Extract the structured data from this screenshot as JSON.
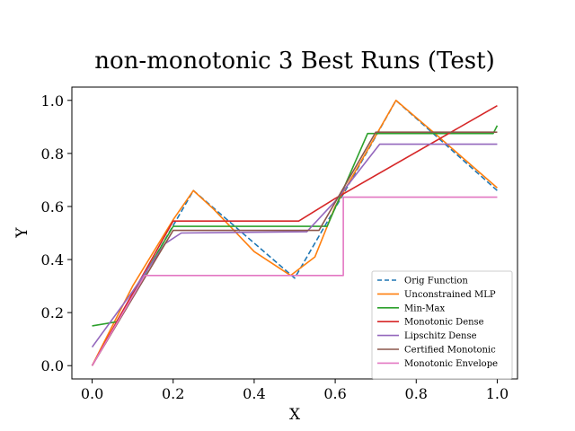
{
  "chart_data": {
    "type": "line",
    "title": "non-monotonic 3 Best Runs (Test)",
    "xlabel": "X",
    "ylabel": "Y",
    "xlim": [
      -0.05,
      1.05
    ],
    "ylim": [
      -0.05,
      1.05
    ],
    "xticks": [
      "0.0",
      "0.2",
      "0.4",
      "0.6",
      "0.8",
      "1.0"
    ],
    "yticks": [
      "0.0",
      "0.2",
      "0.4",
      "0.6",
      "0.8",
      "1.0"
    ],
    "xtick_values": [
      0.0,
      0.2,
      0.4,
      0.6,
      0.8,
      1.0
    ],
    "ytick_values": [
      0.0,
      0.2,
      0.4,
      0.6,
      0.8,
      1.0
    ],
    "grid": false,
    "legend_position": "lower-right",
    "series": [
      {
        "name": "Orig Function",
        "color": "#1f77b4",
        "dashed": true,
        "x": [
          0.0,
          0.125,
          0.25,
          0.5,
          0.625,
          0.75,
          1.0
        ],
        "y": [
          0.0,
          0.33,
          0.66,
          0.33,
          0.66,
          1.0,
          0.66
        ]
      },
      {
        "name": "Unconstrained MLP",
        "color": "#ff7f0e",
        "dashed": false,
        "x": [
          0.0,
          0.1,
          0.2,
          0.25,
          0.3,
          0.4,
          0.49,
          0.55,
          0.6,
          0.75,
          0.85,
          1.0
        ],
        "y": [
          0.0,
          0.3,
          0.55,
          0.66,
          0.59,
          0.43,
          0.34,
          0.41,
          0.6,
          1.0,
          0.87,
          0.67
        ]
      },
      {
        "name": "Min-Max",
        "color": "#2ca02c",
        "dashed": false,
        "x": [
          0.0,
          0.06,
          0.2,
          0.58,
          0.68,
          0.99,
          1.0
        ],
        "y": [
          0.15,
          0.165,
          0.525,
          0.525,
          0.875,
          0.875,
          0.905
        ]
      },
      {
        "name": "Monotonic Dense",
        "color": "#d62728",
        "dashed": false,
        "x": [
          0.0,
          0.2,
          0.51,
          0.6,
          1.0
        ],
        "y": [
          0.0,
          0.545,
          0.545,
          0.63,
          0.98
        ]
      },
      {
        "name": "Lipschitz Dense",
        "color": "#9467bd",
        "dashed": false,
        "x": [
          0.0,
          0.1,
          0.18,
          0.22,
          0.53,
          0.6,
          0.71,
          1.0
        ],
        "y": [
          0.07,
          0.28,
          0.46,
          0.5,
          0.505,
          0.62,
          0.835,
          0.835
        ]
      },
      {
        "name": "Certified Monotonic",
        "color": "#8c564b",
        "dashed": false,
        "x": [
          0.0,
          0.2,
          0.56,
          0.7,
          1.0
        ],
        "y": [
          0.0,
          0.51,
          0.51,
          0.88,
          0.88
        ]
      },
      {
        "name": "Monotonic Envelope",
        "color": "#e377c2",
        "dashed": false,
        "x": [
          0.0,
          0.13,
          0.62,
          0.62,
          1.0
        ],
        "y": [
          0.0,
          0.34,
          0.34,
          0.635,
          0.635
        ]
      }
    ]
  }
}
